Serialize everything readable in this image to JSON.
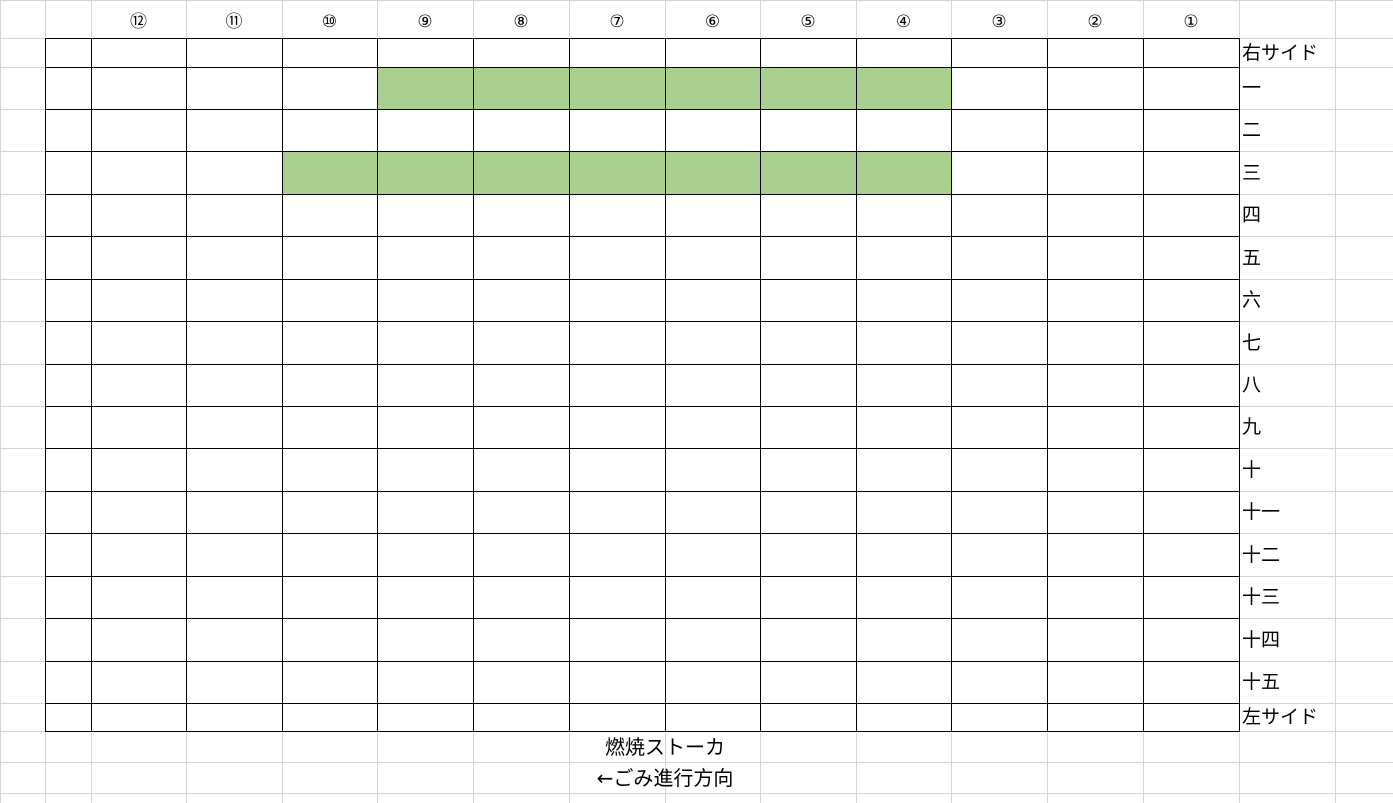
{
  "column_headers": [
    "⑫",
    "⑪",
    "⑩",
    "⑨",
    "⑧",
    "⑦",
    "⑥",
    "⑤",
    "④",
    "③",
    "②",
    "①"
  ],
  "row_labels": [
    "右サイド",
    "一",
    "二",
    "三",
    "四",
    "五",
    "六",
    "七",
    "八",
    "九",
    "十",
    "十一",
    "十二",
    "十三",
    "十四",
    "十五",
    "左サイド"
  ],
  "highlighted_cells": [
    {
      "row": "一",
      "columns": [
        "⑨",
        "⑧",
        "⑦",
        "⑥",
        "⑤",
        "④"
      ]
    },
    {
      "row": "三",
      "columns": [
        "⑩",
        "⑨",
        "⑧",
        "⑦",
        "⑥",
        "⑤",
        "④"
      ]
    }
  ],
  "captions": {
    "stoker": "燃焼ストーカ",
    "direction": "←ごみ進行方向"
  },
  "colors": {
    "highlight": "#a9d08e",
    "grid_line": "#d4d4d4",
    "border": "#000000"
  }
}
